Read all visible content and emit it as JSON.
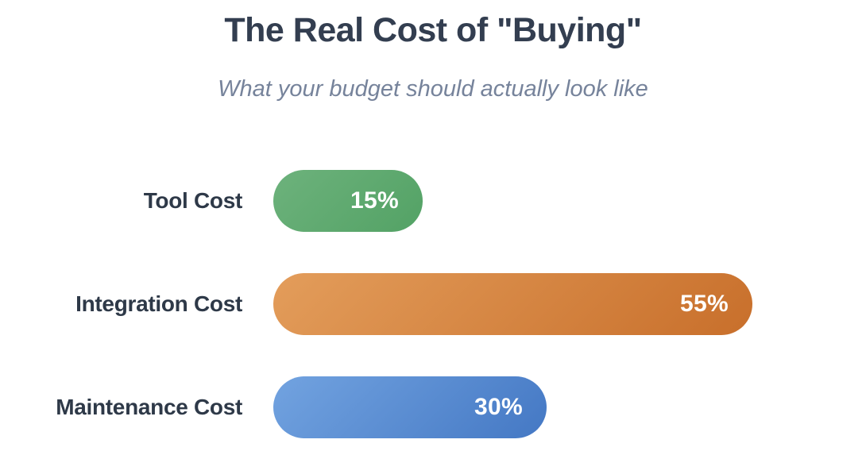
{
  "header": {
    "title": "The Real Cost of \"Buying\"",
    "subtitle": "What your budget should actually look like"
  },
  "chart_data": {
    "type": "bar",
    "orientation": "horizontal",
    "title": "The Real Cost of \"Buying\"",
    "subtitle": "What your budget should actually look like",
    "categories": [
      "Tool Cost",
      "Integration Cost",
      "Maintenance Cost"
    ],
    "values": [
      15,
      55,
      30
    ],
    "value_labels": [
      "15%",
      "55%",
      "30%"
    ],
    "unit": "percent",
    "xlabel": "",
    "ylabel": "",
    "xlim": [
      0,
      60
    ],
    "grid": false,
    "legend": false,
    "axis_ticks_visible": false,
    "bar_shape": "pill",
    "value_label_position": "inside-right",
    "bar_gradients": [
      {
        "name": "green",
        "from": "#6db27c",
        "to": "#53a265"
      },
      {
        "name": "orange",
        "from": "#e39d5b",
        "to": "#c86f2b"
      },
      {
        "name": "blue",
        "from": "#72a3e0",
        "to": "#4478c4"
      }
    ]
  },
  "colors": {
    "background": "#ffffff",
    "title_text": "#333e50",
    "subtitle_text": "#76839b",
    "category_label_text": "#2e3948",
    "bar_value_text": "#ffffff"
  }
}
